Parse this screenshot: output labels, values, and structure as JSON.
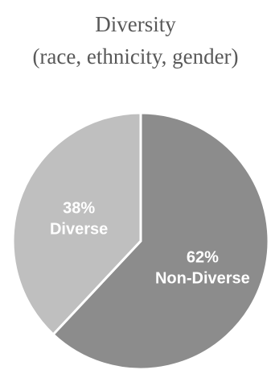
{
  "chart_data": {
    "type": "pie",
    "title": [
      "Diversity",
      "(race, ethnicity, gender)"
    ],
    "slices": [
      {
        "name": "Non-Diverse",
        "value": 62,
        "value_label": "62%",
        "color": "#8c8c8c"
      },
      {
        "name": "Diverse",
        "value": 38,
        "value_label": "38%",
        "color": "#bfbfbf"
      }
    ],
    "start_angle_deg": 0,
    "direction": "clockwise",
    "slice_separator_color": "#ffffff",
    "legend": "none"
  }
}
